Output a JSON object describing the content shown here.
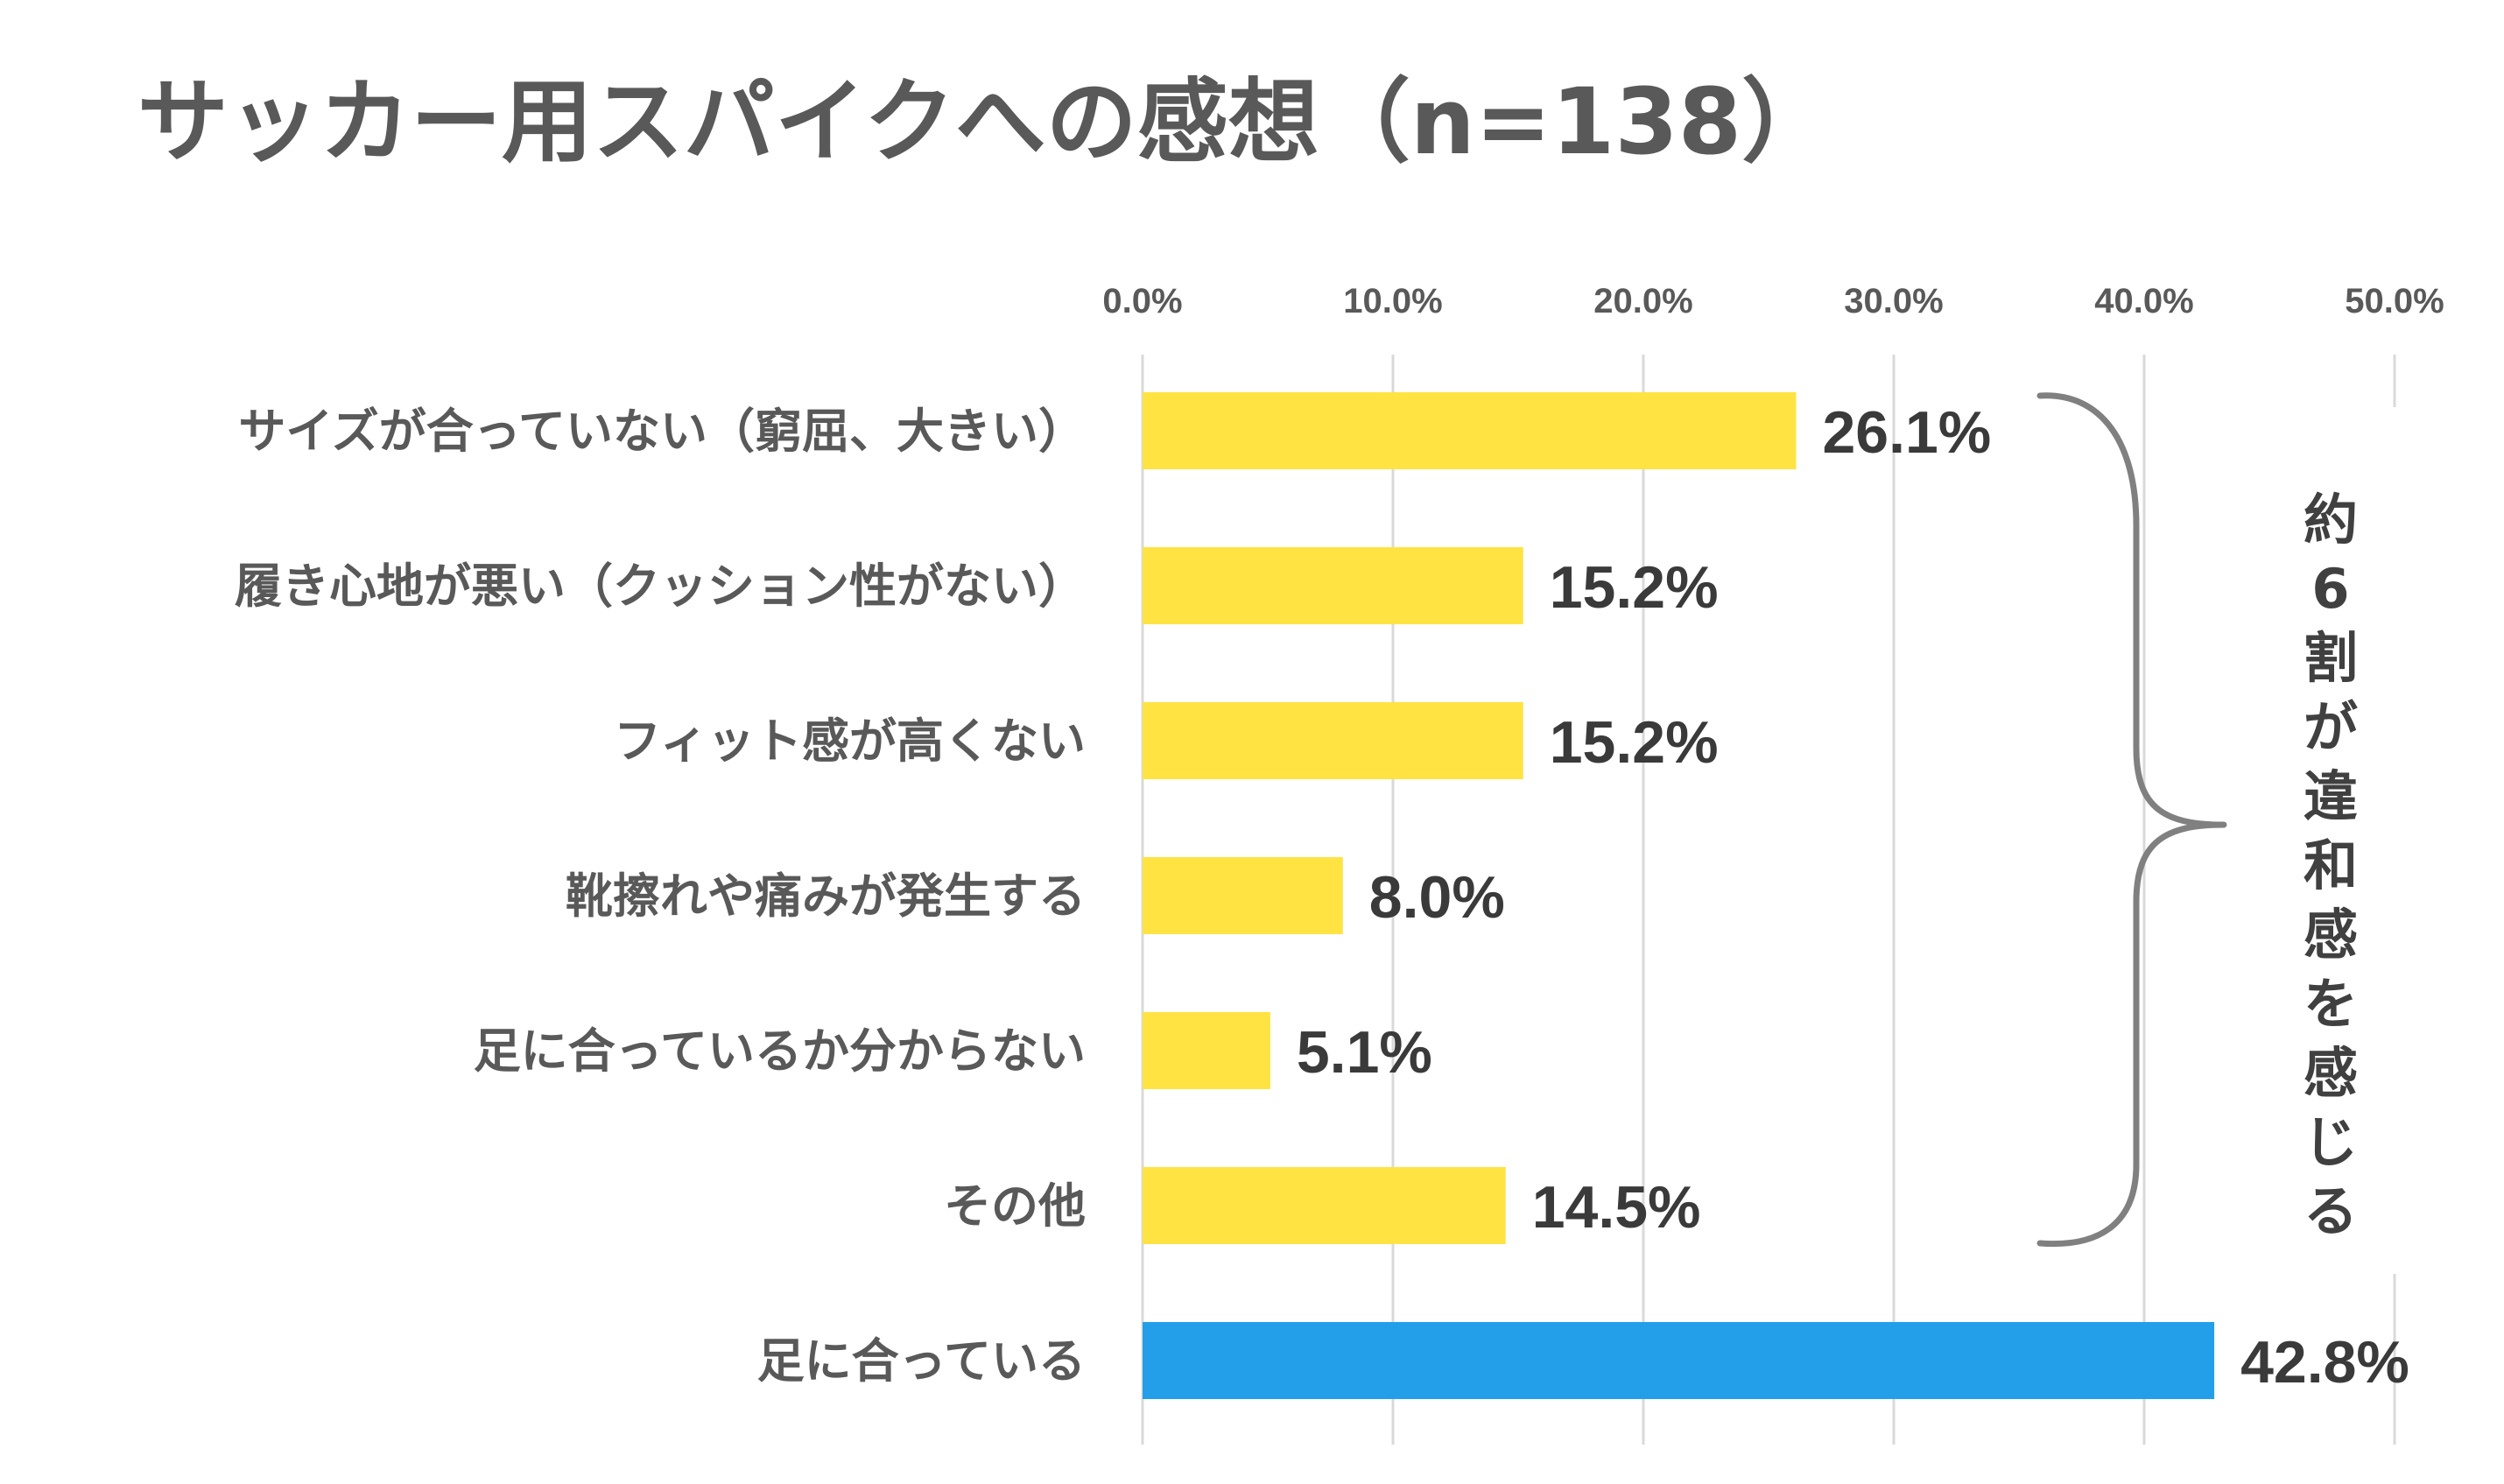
{
  "chart_data": {
    "type": "bar",
    "orientation": "horizontal",
    "title": "サッカー用スパイクへの感想（n=138）",
    "xlim": [
      0,
      50
    ],
    "ticks": [
      "0.0%",
      "10.0%",
      "20.0%",
      "30.0%",
      "40.0%",
      "50.0%"
    ],
    "tick_values": [
      0,
      10,
      20,
      30,
      40,
      50
    ],
    "grid": true,
    "categories": [
      "サイズが合っていない（窮屈、大きい）",
      "履き心地が悪い（クッション性がない）",
      "フィット感が高くない",
      "靴擦れや痛みが発生する",
      "足に合っているか分からない",
      "その他",
      "足に合っている"
    ],
    "values": [
      26.1,
      15.2,
      15.2,
      8.0,
      5.1,
      14.5,
      42.8
    ],
    "value_labels": [
      "26.1%",
      "15.2%",
      "15.2%",
      "8.0%",
      "5.1%",
      "14.5%",
      "42.8%"
    ],
    "bar_colors": [
      "#FFE343",
      "#FFE343",
      "#FFE343",
      "#FFE343",
      "#FFE343",
      "#FFE343",
      "#239FEA"
    ],
    "annotation": {
      "text": "約6割が違和感を感じる",
      "chars": [
        "約",
        "6",
        "割",
        "が",
        "違",
        "和",
        "感",
        "を",
        "感",
        "じ",
        "る"
      ],
      "groups_first_six_bars": true
    }
  }
}
